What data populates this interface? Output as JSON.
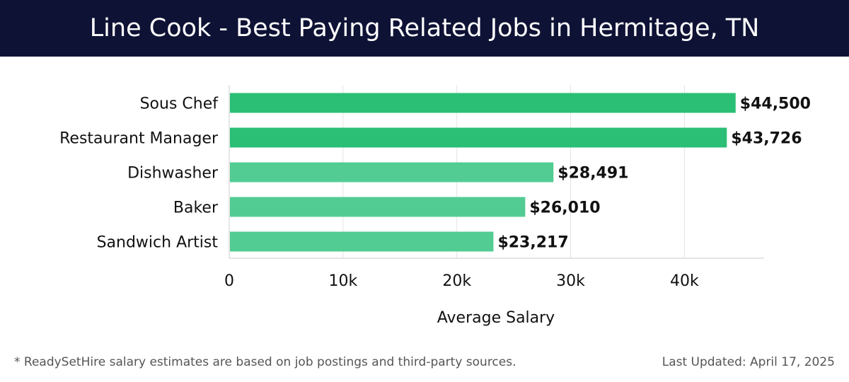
{
  "header": {
    "title": "Line Cook - Best Paying Related Jobs in Hermitage, TN"
  },
  "chart_data": {
    "type": "bar",
    "orientation": "horizontal",
    "title": "Line Cook - Best Paying Related Jobs in Hermitage, TN",
    "categories": [
      "Sous Chef",
      "Restaurant Manager",
      "Dishwasher",
      "Baker",
      "Sandwich Artist"
    ],
    "values": [
      44500,
      43726,
      28491,
      26010,
      23217
    ],
    "value_labels": [
      "$44,500",
      "$43,726",
      "$28,491",
      "$26,010",
      "$23,217"
    ],
    "xlabel": "Average Salary",
    "ylabel": "",
    "xlim": [
      0,
      47000
    ],
    "x_ticks": [
      0,
      10000,
      20000,
      30000,
      40000
    ],
    "x_tick_labels": [
      "0",
      "10k",
      "20k",
      "30k",
      "40k"
    ],
    "grid": true,
    "colors": {
      "top_bars": "#2bbf76",
      "other_bars": "#52cc92",
      "grid": "#e3e3e3",
      "axis": "#cccccc"
    },
    "highlight_count": 2
  },
  "footer": {
    "note": "* ReadySetHire salary estimates are based on job postings and third-party sources.",
    "updated": "Last Updated: April 17, 2025"
  }
}
